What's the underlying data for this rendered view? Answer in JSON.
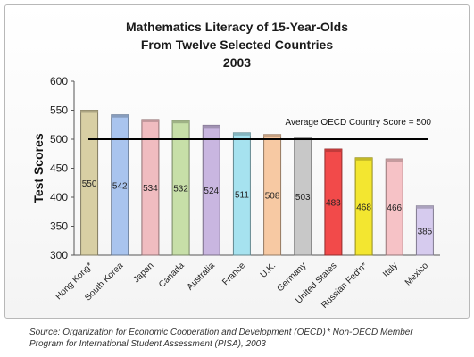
{
  "title_lines": [
    "Mathematics Literacy of 15-Year-Olds",
    "From Twelve Selected Countries",
    "2003"
  ],
  "footer": {
    "source_line1": "Source: Organization for Economic Cooperation and Development (OECD)",
    "source_line2": "Program for International Student Assessment (PISA), 2003",
    "note": "* Non-OECD Member"
  },
  "chart_data": {
    "type": "bar",
    "ylabel": "Test Scores",
    "ylim": [
      300,
      600
    ],
    "yticks": [
      300,
      350,
      400,
      450,
      500,
      550,
      600
    ],
    "grid": false,
    "categories": [
      "Hong Kong*",
      "South Korea",
      "Japan",
      "Canada",
      "Australia",
      "France",
      "U.K.",
      "Germany",
      "United States",
      "Russian Fed'n*",
      "Italy",
      "Mexico"
    ],
    "values": [
      550,
      542,
      534,
      532,
      524,
      511,
      508,
      503,
      483,
      468,
      466,
      385
    ],
    "bar_colors": [
      "#d8cfa4",
      "#a9c4ee",
      "#f0bcc0",
      "#c7dfa8",
      "#c9b6e0",
      "#a6e2ef",
      "#f7c9a3",
      "#c8c8c8",
      "#f24a4a",
      "#f3e630",
      "#f6c2c6",
      "#d6cbee"
    ],
    "reference_line": {
      "value": 500,
      "label": "Average OECD Country Score = 500"
    }
  }
}
